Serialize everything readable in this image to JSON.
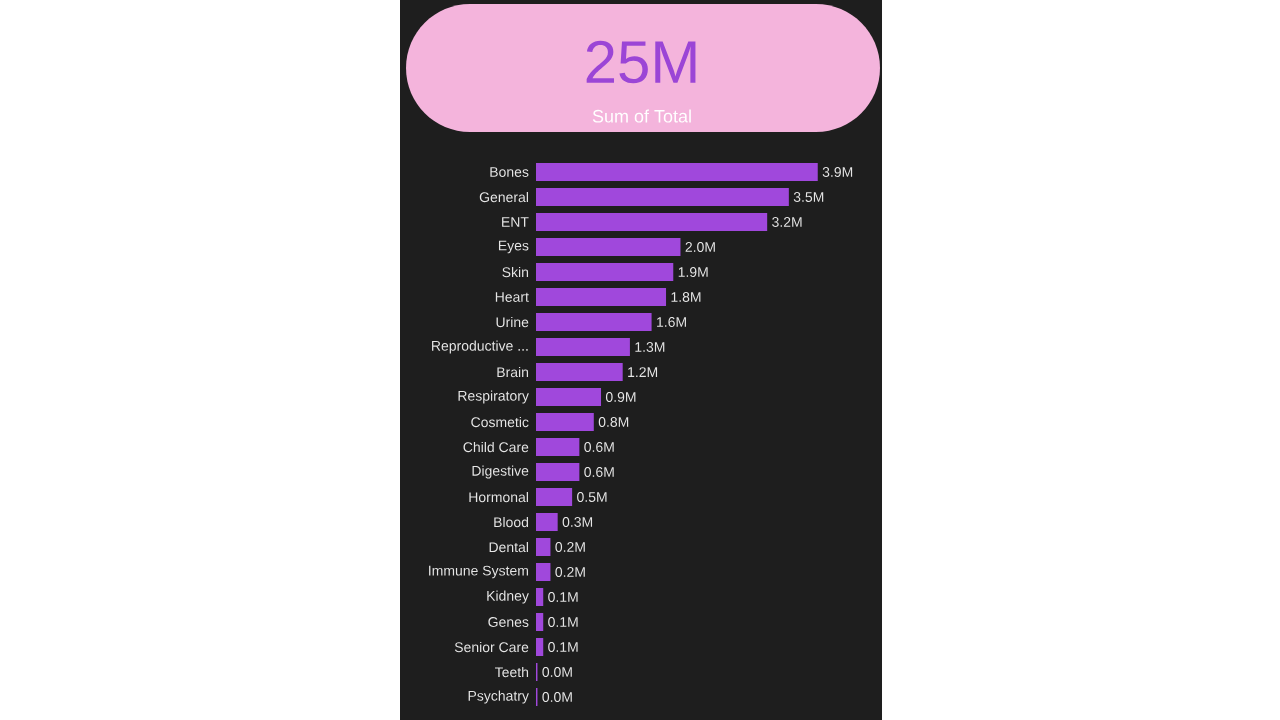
{
  "chart_data": [
    {
      "type": "other",
      "title": "25M",
      "subtitle": "Sum of Total"
    },
    {
      "type": "bar",
      "orientation": "horizontal",
      "color": "#a048dc",
      "categories": [
        "Bones",
        "General",
        "ENT",
        "Eyes",
        "Skin",
        "Heart",
        "Urine",
        "Reproductive ...",
        "Brain",
        "Respiratory",
        "Cosmetic",
        "Child Care",
        "Digestive",
        "Hormonal",
        "Blood",
        "Dental",
        "Immune System",
        "Kidney",
        "Genes",
        "Senior Care",
        "Teeth",
        "Psychatry"
      ],
      "values": [
        3.9,
        3.5,
        3.2,
        2.0,
        1.9,
        1.8,
        1.6,
        1.3,
        1.2,
        0.9,
        0.8,
        0.6,
        0.6,
        0.5,
        0.3,
        0.2,
        0.2,
        0.1,
        0.1,
        0.1,
        0.02,
        0.02
      ],
      "value_labels": [
        "3.9M",
        "3.5M",
        "3.2M",
        "2.0M",
        "1.9M",
        "1.8M",
        "1.6M",
        "1.3M",
        "1.2M",
        "0.9M",
        "0.8M",
        "0.6M",
        "0.6M",
        "0.5M",
        "0.3M",
        "0.2M",
        "0.2M",
        "0.1M",
        "0.1M",
        "0.1M",
        "0.0M",
        "0.0M"
      ]
    }
  ]
}
